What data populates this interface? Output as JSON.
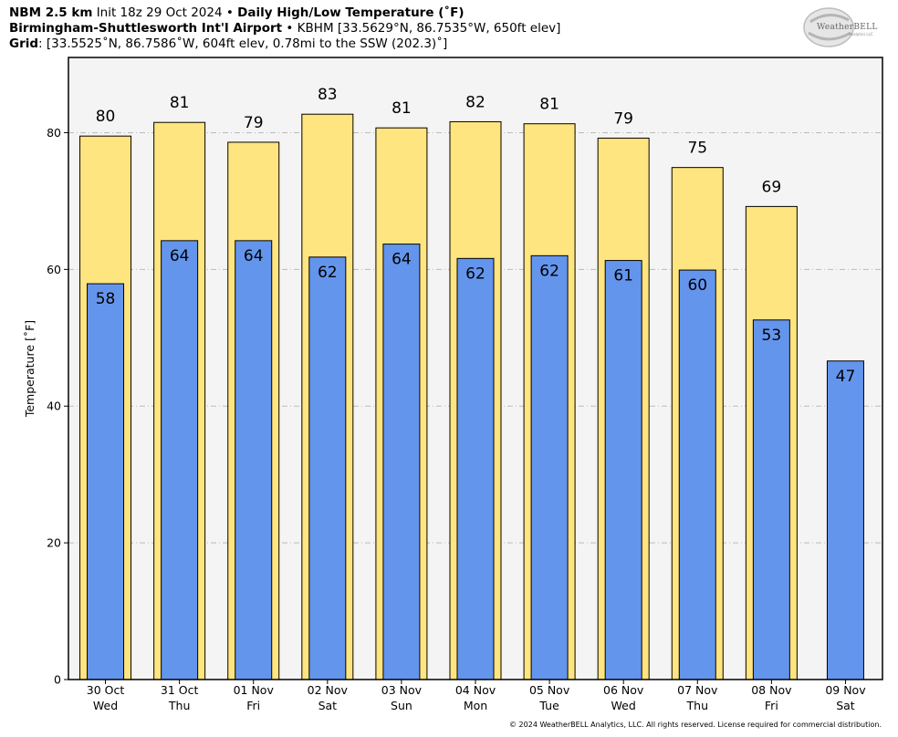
{
  "header": {
    "line1_model": "NBM 2.5 km",
    "line1_init": "Init 18z 29 Oct 2024",
    "line1_sep": "•",
    "line1_title": "Daily High/Low Temperature (˚F)",
    "line2_station": "Birmingham-Shuttlesworth Int'l Airport",
    "line2_sep": "•",
    "line2_detail": "KBHM [33.5629°N, 86.7535°W, 650ft elev]",
    "line3_label": "Grid",
    "line3_detail": ": [33.5525˚N, 86.7586˚W, 604ft elev, 0.78mi to the SSW (202.3)˚]"
  },
  "logo": {
    "name": "WeatherBELL",
    "sub": "Analytics LLC"
  },
  "footer": "© 2024 WeatherBELL Analytics, LLC. All rights reserved. License required for commercial distribution.",
  "colors": {
    "high": "#FFE57F",
    "low": "#6495ED",
    "plot_bg": "#F4F4F4",
    "grid": "#BBBBBB"
  },
  "chart_data": {
    "type": "bar",
    "ylabel": "Temperature [˚F]",
    "ylim": [
      0,
      91
    ],
    "yticks": [
      0,
      20,
      40,
      60,
      80
    ],
    "grid": "horizontal dash-dot",
    "categories": [
      "30 Oct",
      "31 Oct",
      "01 Nov",
      "02 Nov",
      "03 Nov",
      "04 Nov",
      "05 Nov",
      "06 Nov",
      "07 Nov",
      "08 Nov",
      "09 Nov"
    ],
    "weekdays": [
      "Wed",
      "Thu",
      "Fri",
      "Sat",
      "Sun",
      "Mon",
      "Tue",
      "Wed",
      "Thu",
      "Fri",
      "Sat"
    ],
    "series": [
      {
        "key": "high",
        "values": [
          79.5,
          81.5,
          78.6,
          82.7,
          80.7,
          81.6,
          81.3,
          79.2,
          74.9,
          69.2,
          null
        ],
        "labels": [
          "80",
          "81",
          "79",
          "83",
          "81",
          "82",
          "81",
          "79",
          "75",
          "69",
          ""
        ]
      },
      {
        "key": "low",
        "values": [
          57.9,
          64.2,
          64.2,
          61.8,
          63.7,
          61.6,
          62.0,
          61.3,
          59.9,
          52.6,
          46.6
        ],
        "labels": [
          "58",
          "64",
          "64",
          "62",
          "64",
          "62",
          "62",
          "61",
          "60",
          "53",
          "47"
        ]
      }
    ]
  }
}
